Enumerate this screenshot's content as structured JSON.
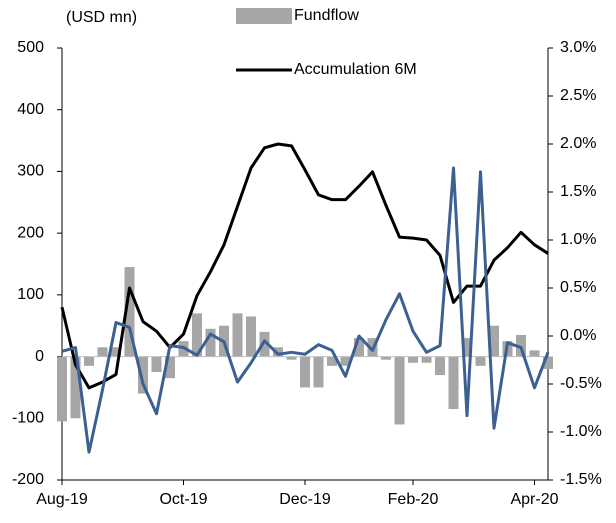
{
  "chart_data": {
    "type": "bar-line",
    "y_label": "(USD mn)",
    "categories": [
      "Aug-19",
      null,
      null,
      null,
      null,
      null,
      null,
      null,
      null,
      "Oct-19",
      null,
      null,
      null,
      null,
      null,
      null,
      null,
      null,
      "Dec-19",
      null,
      null,
      null,
      null,
      null,
      null,
      null,
      "Feb-20",
      null,
      null,
      null,
      null,
      null,
      null,
      null,
      null,
      "Apr-20",
      null
    ],
    "series": [
      {
        "name": "Fundflow",
        "type": "bar",
        "color": "#a6a6a6",
        "values": [
          -105,
          -100,
          -15,
          15,
          15,
          145,
          -60,
          -25,
          -35,
          25,
          70,
          45,
          50,
          70,
          65,
          40,
          15,
          -5,
          -50,
          -50,
          -15,
          -15,
          30,
          30,
          -5,
          -110,
          -10,
          -10,
          -30,
          -85,
          30,
          -15,
          50,
          25,
          35,
          10,
          -20
        ]
      },
      {
        "name": "Accumulation 6M",
        "type": "line",
        "axis": "y2",
        "color": "#000000",
        "values": [
          0.3,
          -0.3,
          -0.54,
          -0.48,
          -0.4,
          0.5,
          0.15,
          0.05,
          -0.12,
          0.02,
          0.42,
          0.67,
          0.95,
          1.35,
          1.75,
          1.96,
          2.0,
          1.98,
          1.73,
          1.47,
          1.42,
          1.42,
          1.56,
          1.71,
          1.36,
          1.03,
          1.02,
          1.0,
          0.84,
          0.35,
          0.52,
          0.52,
          0.79,
          0.92,
          1.08,
          0.95,
          0.86
        ]
      },
      {
        "type": "line",
        "axis": "y2",
        "color": "#3b6091",
        "values": [
          -0.16,
          -0.12,
          -1.21,
          -0.56,
          0.14,
          0.09,
          -0.5,
          -0.81,
          -0.1,
          -0.12,
          -0.2,
          0.02,
          -0.06,
          -0.48,
          -0.28,
          -0.05,
          -0.19,
          -0.17,
          -0.19,
          -0.09,
          -0.15,
          -0.42,
          0.0,
          -0.15,
          0.17,
          0.44,
          0.05,
          -0.17,
          -0.1,
          1.75,
          -0.83,
          1.71,
          -0.96,
          -0.07,
          -0.12,
          -0.54,
          -0.17
        ]
      }
    ],
    "ylim": [
      -200,
      500
    ],
    "yticks": [
      -200,
      -100,
      0,
      100,
      200,
      300,
      400,
      500
    ],
    "y2lim": [
      -1.5,
      3.0
    ],
    "y2ticks": [
      {
        "value": -1.5,
        "label": "-1.5%"
      },
      {
        "value": -1.0,
        "label": "-1.0%"
      },
      {
        "value": -0.5,
        "label": "-0.5%"
      },
      {
        "value": 0.0,
        "label": "0.0%"
      },
      {
        "value": 0.5,
        "label": "0.5%"
      },
      {
        "value": 1.0,
        "label": "1.0%"
      },
      {
        "value": 1.5,
        "label": "1.5%"
      },
      {
        "value": 2.0,
        "label": "2.0%"
      },
      {
        "value": 2.5,
        "label": "2.5%"
      },
      {
        "value": 3.0,
        "label": "3.0%"
      }
    ]
  }
}
